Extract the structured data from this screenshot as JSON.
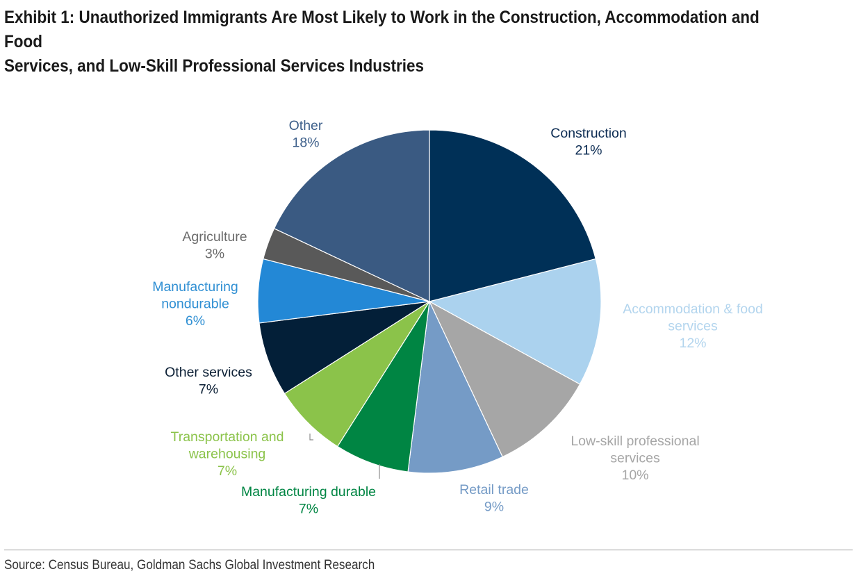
{
  "title_line1": "Exhibit 1: Unauthorized Immigrants Are Most Likely to Work in the Construction, Accommodation and Food",
  "title_line2": "Services, and Low-Skill Professional Services Industries",
  "source": "Source: Census Bureau, Goldman Sachs Global Investment Research",
  "chart_data": {
    "type": "pie",
    "title": "Exhibit 1: Unauthorized Immigrants Are Most Likely to Work in the Construction, Accommodation and Food Services, and Low-Skill Professional Services Industries",
    "unit": "%",
    "start": "12 o'clock, clockwise",
    "slices": [
      {
        "label": "Construction",
        "label_lines": [
          "Construction"
        ],
        "value": 21,
        "value_text": "21%",
        "color": "#003057",
        "text_color": "#0b2b52"
      },
      {
        "label": "Accommodation & food services",
        "label_lines": [
          "Accommodation & food",
          "services"
        ],
        "value": 12,
        "value_text": "12%",
        "color": "#abd2ee",
        "text_color": "#b3d5ee"
      },
      {
        "label": "Low-skill professional services",
        "label_lines": [
          "Low-skill professional",
          "services"
        ],
        "value": 10,
        "value_text": "10%",
        "color": "#a6a6a6",
        "text_color": "#a6a6a6"
      },
      {
        "label": "Retail trade",
        "label_lines": [
          "Retail trade"
        ],
        "value": 9,
        "value_text": "9%",
        "color": "#759bc6",
        "text_color": "#759bc6"
      },
      {
        "label": "Manufacturing durable",
        "label_lines": [
          "Manufacturing durable"
        ],
        "value": 7,
        "value_text": "7%",
        "color": "#008543",
        "text_color": "#008543"
      },
      {
        "label": "Transportation and warehousing",
        "label_lines": [
          "Transportation and",
          "warehousing"
        ],
        "value": 7,
        "value_text": "7%",
        "color": "#8bc34a",
        "text_color": "#8bc34a"
      },
      {
        "label": "Other services",
        "label_lines": [
          "Other services"
        ],
        "value": 7,
        "value_text": "7%",
        "color": "#031f38",
        "text_color": "#0b1f35"
      },
      {
        "label": "Manufacturing nondurable",
        "label_lines": [
          "Manufacturing",
          "nondurable"
        ],
        "value": 6,
        "value_text": "6%",
        "color": "#2388d6",
        "text_color": "#2f8fd3"
      },
      {
        "label": "Agriculture",
        "label_lines": [
          "Agriculture"
        ],
        "value": 3,
        "value_text": "3%",
        "color": "#595959",
        "text_color": "#6b6b6b"
      },
      {
        "label": "Other",
        "label_lines": [
          "Other"
        ],
        "value": 18,
        "value_text": "18%",
        "color": "#3a5a82",
        "text_color": "#3d5f8a"
      }
    ]
  }
}
